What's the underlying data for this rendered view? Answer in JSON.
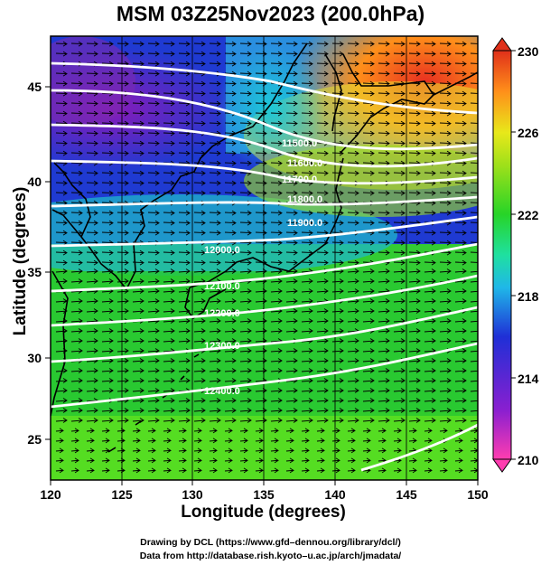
{
  "title": "MSM 03Z25Nov2023 (200.0hPa)",
  "xlabel": "Longitude (degrees)",
  "ylabel": "Latitude  (degrees)",
  "x_ticks": [
    "120",
    "125",
    "130",
    "135",
    "140",
    "145",
    "150"
  ],
  "y_ticks": [
    "25",
    "30",
    "35",
    "40",
    "45"
  ],
  "colorbar": {
    "ticks": [
      "230",
      "226",
      "222",
      "218",
      "214",
      "210"
    ],
    "min": 210,
    "max": 230
  },
  "contour_labels": [
    "11500.0",
    "11600.0",
    "11700.0",
    "11800.0",
    "11900.0",
    "12000.0",
    "12100.0",
    "12200.0",
    "12300.0",
    "12400.0"
  ],
  "credits": {
    "line1": "Drawing by DCL (https://www.gfd–dennou.org/library/dcl/)",
    "line2": "Data from http://database.rish.kyoto–u.ac.jp/arch/jmadata/"
  },
  "colors": {
    "purple": "#9a1fb0",
    "blue": "#2236d0",
    "cyan": "#19c3cf",
    "green": "#33cc33",
    "yellow": "#d8e81a",
    "orange": "#ff8c1a",
    "red": "#e8402a"
  }
}
